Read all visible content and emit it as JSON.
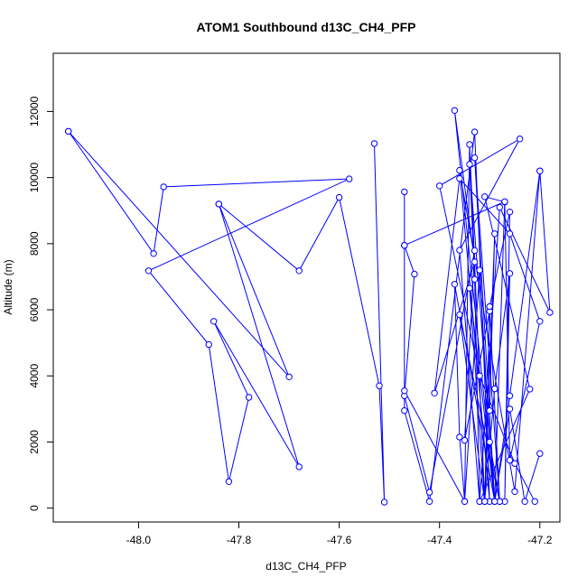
{
  "chart_data": {
    "type": "line",
    "title": "ATOM1 Southbound d13C_CH4_PFP",
    "xlabel": "d13C_CH4_PFP",
    "ylabel": "Altitude (m)",
    "xlim": [
      -48.17,
      -47.16
    ],
    "ylim": [
      -420,
      13760
    ],
    "x_ticks": [
      -48.0,
      -47.8,
      -47.6,
      -47.4,
      -47.2
    ],
    "x_tick_labels": [
      "-48.0",
      "-47.8",
      "-47.6",
      "-47.4",
      "-47.2"
    ],
    "y_ticks": [
      0,
      2000,
      4000,
      6000,
      8000,
      10000,
      12000
    ],
    "y_tick_labels": [
      "0",
      "2000",
      "4000",
      "6000",
      "8000",
      "10000",
      "12000"
    ],
    "grid": false,
    "legend": "none",
    "colors": {
      "series": "#0000ff",
      "axis": "#000000"
    },
    "series": [
      {
        "points": [
          [
            -48.14,
            11400
          ],
          [
            -47.7,
            3970
          ],
          [
            -47.84,
            9200
          ],
          [
            -47.68,
            1250
          ],
          [
            -47.85,
            5650
          ],
          [
            -47.78,
            3350
          ],
          [
            -47.82,
            800
          ],
          [
            -47.86,
            4950
          ],
          [
            -47.98,
            7180
          ],
          [
            -47.58,
            9960
          ],
          [
            -47.95,
            9720
          ],
          [
            -47.97,
            7700
          ],
          [
            -48.14,
            11400
          ]
        ]
      },
      {
        "points": [
          [
            -47.84,
            9200
          ],
          [
            -47.68,
            7180
          ],
          [
            -47.6,
            9400
          ],
          [
            -47.52,
            3700
          ],
          [
            -47.51,
            180
          ],
          [
            -47.53,
            11030
          ]
        ]
      },
      {
        "points": [
          [
            -47.47,
            9570
          ],
          [
            -47.47,
            2950
          ],
          [
            -47.42,
            200
          ],
          [
            -47.33,
            11380
          ],
          [
            -47.3,
            200
          ],
          [
            -47.36,
            10220
          ],
          [
            -47.25,
            500
          ],
          [
            -47.2,
            10200
          ],
          [
            -47.18,
            5920
          ],
          [
            -47.28,
            9100
          ],
          [
            -47.32,
            200
          ],
          [
            -47.33,
            6920
          ],
          [
            -47.34,
            10400
          ],
          [
            -47.29,
            200
          ],
          [
            -47.37,
            12030
          ],
          [
            -47.33,
            7450
          ],
          [
            -47.41,
            3480
          ],
          [
            -47.36,
            9970
          ],
          [
            -47.26,
            8300
          ],
          [
            -47.2,
            5650
          ],
          [
            -47.26,
            1450
          ],
          [
            -47.27,
            9260
          ],
          [
            -47.31,
            9420
          ],
          [
            -47.22,
            3600
          ],
          [
            -47.32,
            200
          ],
          [
            -47.36,
            7800
          ],
          [
            -47.24,
            11170
          ],
          [
            -47.4,
            9750
          ],
          [
            -47.32,
            4000
          ],
          [
            -47.25,
            1350
          ],
          [
            -47.21,
            200
          ]
        ]
      },
      {
        "points": [
          [
            -47.47,
            7950
          ],
          [
            -47.45,
            7080
          ],
          [
            -47.47,
            3400
          ],
          [
            -47.42,
            480
          ],
          [
            -47.33,
            7790
          ],
          [
            -47.35,
            2050
          ],
          [
            -47.3,
            5960
          ],
          [
            -47.28,
            200
          ],
          [
            -47.33,
            10600
          ],
          [
            -47.29,
            200
          ],
          [
            -47.34,
            6650
          ],
          [
            -47.31,
            200
          ],
          [
            -47.29,
            3610
          ],
          [
            -47.26,
            7100
          ],
          [
            -47.27,
            200
          ],
          [
            -47.26,
            8960
          ],
          [
            -47.3,
            6100
          ],
          [
            -47.31,
            200
          ],
          [
            -47.34,
            11000
          ],
          [
            -47.35,
            200
          ],
          [
            -47.36,
            2150
          ],
          [
            -47.37,
            6770
          ],
          [
            -47.29,
            200
          ],
          [
            -47.26,
            3000
          ],
          [
            -47.23,
            200
          ],
          [
            -47.2,
            1650
          ]
        ]
      },
      {
        "points": [
          [
            -47.47,
            3550
          ],
          [
            -47.35,
            200
          ],
          [
            -47.32,
            7200
          ],
          [
            -47.3,
            2000
          ],
          [
            -47.28,
            200
          ],
          [
            -47.36,
            5850
          ],
          [
            -47.31,
            200
          ],
          [
            -47.29,
            8300
          ],
          [
            -47.3,
            2950
          ]
        ]
      },
      {
        "points": [
          [
            -47.47,
            7950
          ],
          [
            -47.27,
            9270
          ],
          [
            -47.29,
            200
          ],
          [
            -47.26,
            3400
          ],
          [
            -47.2,
            10200
          ]
        ]
      }
    ]
  }
}
